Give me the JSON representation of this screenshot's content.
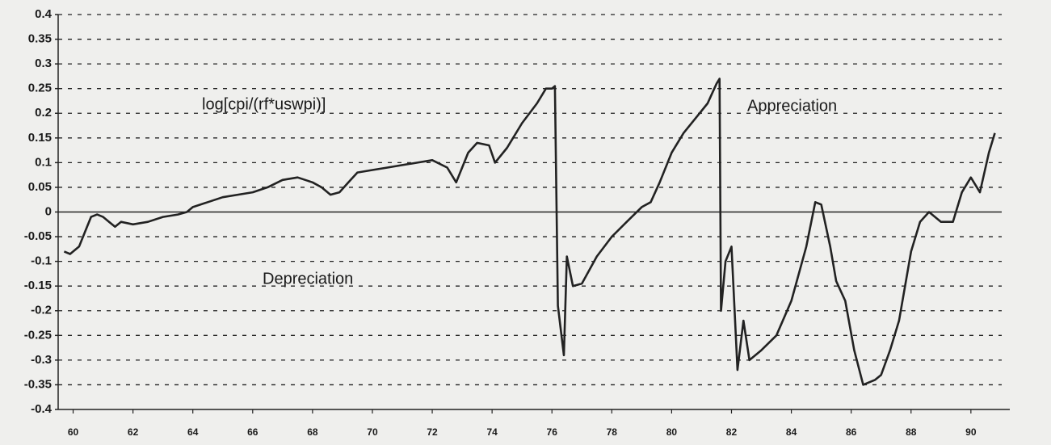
{
  "chart_data": {
    "type": "line",
    "annotations": [
      "log[cpi/(rf*uswpi)]",
      "Appreciation",
      "Depreciation"
    ],
    "x": [
      59.7,
      59.9,
      60.2,
      60.4,
      60.6,
      60.8,
      61.0,
      61.2,
      61.4,
      61.6,
      62.0,
      62.5,
      63.0,
      63.5,
      63.8,
      64.0,
      64.5,
      65.0,
      65.5,
      66.0,
      66.5,
      67.0,
      67.5,
      68.0,
      68.3,
      68.6,
      68.9,
      69.2,
      69.5,
      70.0,
      70.5,
      71.0,
      71.5,
      72.0,
      72.5,
      72.8,
      73.0,
      73.2,
      73.5,
      73.9,
      74.1,
      74.5,
      75.0,
      75.5,
      75.8,
      76.0,
      76.1,
      76.2,
      76.4,
      76.5,
      76.7,
      77.0,
      77.5,
      78.0,
      78.5,
      79.0,
      79.3,
      79.6,
      80.0,
      80.4,
      80.8,
      81.2,
      81.5,
      81.6,
      81.65,
      81.8,
      82.0,
      82.2,
      82.4,
      82.6,
      83.0,
      83.5,
      84.0,
      84.5,
      84.8,
      85.0,
      85.3,
      85.5,
      85.8,
      86.1,
      86.4,
      86.8,
      87.0,
      87.3,
      87.6,
      88.0,
      88.3,
      88.6,
      88.8,
      89.0,
      89.4,
      89.7,
      90.0,
      90.3,
      90.6,
      90.8
    ],
    "series": [
      {
        "color": "#222222",
        "values": [
          -0.08,
          -0.085,
          -0.07,
          -0.04,
          -0.01,
          -0.005,
          -0.01,
          -0.02,
          -0.03,
          -0.02,
          -0.025,
          -0.02,
          -0.01,
          -0.005,
          0,
          0.01,
          0.02,
          0.03,
          0.035,
          0.04,
          0.05,
          0.065,
          0.07,
          0.06,
          0.05,
          0.035,
          0.04,
          0.06,
          0.08,
          0.085,
          0.09,
          0.095,
          0.1,
          0.105,
          0.09,
          0.06,
          0.09,
          0.12,
          0.14,
          0.135,
          0.1,
          0.13,
          0.18,
          0.22,
          0.25,
          0.25,
          0.255,
          -0.19,
          -0.29,
          -0.09,
          -0.15,
          -0.145,
          -0.09,
          -0.05,
          -0.02,
          0.01,
          0.02,
          0.06,
          0.12,
          0.16,
          0.19,
          0.22,
          0.26,
          0.27,
          -0.2,
          -0.1,
          -0.07,
          -0.32,
          -0.22,
          -0.3,
          -0.28,
          -0.25,
          -0.18,
          -0.07,
          0.02,
          0.015,
          -0.07,
          -0.14,
          -0.18,
          -0.28,
          -0.35,
          -0.34,
          -0.33,
          -0.28,
          -0.22,
          -0.08,
          -0.02,
          0,
          -0.01,
          -0.02,
          -0.02,
          0.04,
          0.07,
          0.04,
          0.12,
          0.16
        ]
      }
    ],
    "xlim": [
      59.5,
      91.3
    ],
    "xticks": [
      60,
      62,
      64,
      66,
      68,
      70,
      72,
      74,
      76,
      78,
      80,
      82,
      84,
      86,
      88,
      90
    ],
    "ylim": [
      -0.4,
      0.4
    ],
    "yticks": [
      0.4,
      0.35,
      0.3,
      0.25,
      0.2,
      0.15,
      0.1,
      0.05,
      0,
      -0.05,
      -0.1,
      -0.15,
      -0.2,
      -0.25,
      -0.3,
      -0.35,
      -0.4
    ],
    "grid": true
  }
}
